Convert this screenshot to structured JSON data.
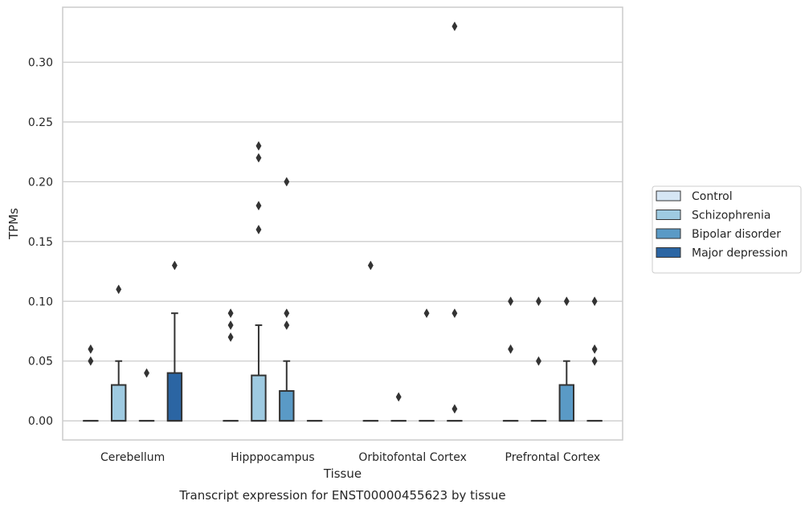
{
  "chart_data": {
    "type": "box",
    "categories": [
      "Cerebellum",
      "Hipppocampus",
      "Orbitofontal Cortex",
      "Prefrontal Cortex"
    ],
    "xlabel": "Tissue",
    "ylabel": "TPMs",
    "caption": "Transcript expression for ENST00000455623 by tissue",
    "ylim": [
      -0.016,
      0.346
    ],
    "yticks": [
      0.0,
      0.05,
      0.1,
      0.15,
      0.2,
      0.25,
      0.3
    ],
    "ytick_labels": [
      "0.00",
      "0.05",
      "0.10",
      "0.15",
      "0.20",
      "0.25",
      "0.30"
    ],
    "grid": true,
    "legend_position": "right",
    "series": [
      {
        "name": "Control",
        "color": "#d6e6f4",
        "boxes": [
          {
            "q1": 0,
            "median": 0,
            "q3": 0,
            "whisker_low": 0,
            "whisker_high": 0,
            "outliers": [
              0.05,
              0.06
            ]
          },
          {
            "q1": 0,
            "median": 0,
            "q3": 0,
            "whisker_low": 0,
            "whisker_high": 0,
            "outliers": [
              0.07,
              0.08,
              0.09
            ]
          },
          {
            "q1": 0,
            "median": 0,
            "q3": 0,
            "whisker_low": 0,
            "whisker_high": 0,
            "outliers": [
              0.13
            ]
          },
          {
            "q1": 0,
            "median": 0,
            "q3": 0,
            "whisker_low": 0,
            "whisker_high": 0,
            "outliers": [
              0.06,
              0.1
            ]
          }
        ]
      },
      {
        "name": "Schizophrenia",
        "color": "#9ecae1",
        "boxes": [
          {
            "q1": 0,
            "median": 0,
            "q3": 0.03,
            "whisker_low": 0,
            "whisker_high": 0.05,
            "outliers": [
              0.11
            ]
          },
          {
            "q1": 0,
            "median": 0,
            "q3": 0.038,
            "whisker_low": 0,
            "whisker_high": 0.08,
            "outliers": [
              0.16,
              0.18,
              0.22,
              0.23
            ]
          },
          {
            "q1": 0,
            "median": 0,
            "q3": 0,
            "whisker_low": 0,
            "whisker_high": 0,
            "outliers": [
              0.02
            ]
          },
          {
            "q1": 0,
            "median": 0,
            "q3": 0,
            "whisker_low": 0,
            "whisker_high": 0,
            "outliers": [
              0.05,
              0.1
            ]
          }
        ]
      },
      {
        "name": "Bipolar disorder",
        "color": "#5a9ac6",
        "boxes": [
          {
            "q1": 0,
            "median": 0,
            "q3": 0,
            "whisker_low": 0,
            "whisker_high": 0,
            "outliers": [
              0.04
            ]
          },
          {
            "q1": 0,
            "median": 0,
            "q3": 0.025,
            "whisker_low": 0,
            "whisker_high": 0.05,
            "outliers": [
              0.08,
              0.09,
              0.2
            ]
          },
          {
            "q1": 0,
            "median": 0,
            "q3": 0,
            "whisker_low": 0,
            "whisker_high": 0,
            "outliers": [
              0.09
            ]
          },
          {
            "q1": 0,
            "median": 0,
            "q3": 0.03,
            "whisker_low": 0,
            "whisker_high": 0.05,
            "outliers": [
              0.1
            ]
          }
        ]
      },
      {
        "name": "Major depression",
        "color": "#2b65a3",
        "boxes": [
          {
            "q1": 0,
            "median": 0,
            "q3": 0.04,
            "whisker_low": 0,
            "whisker_high": 0.09,
            "outliers": [
              0.13
            ]
          },
          {
            "q1": 0,
            "median": 0,
            "q3": 0,
            "whisker_low": 0,
            "whisker_high": 0,
            "outliers": []
          },
          {
            "q1": 0,
            "median": 0,
            "q3": 0,
            "whisker_low": 0,
            "whisker_high": 0,
            "outliers": [
              0.01,
              0.09,
              0.33
            ]
          },
          {
            "q1": 0,
            "median": 0,
            "q3": 0,
            "whisker_low": 0,
            "whisker_high": 0,
            "outliers": [
              0.05,
              0.06,
              0.1
            ]
          }
        ]
      }
    ]
  }
}
